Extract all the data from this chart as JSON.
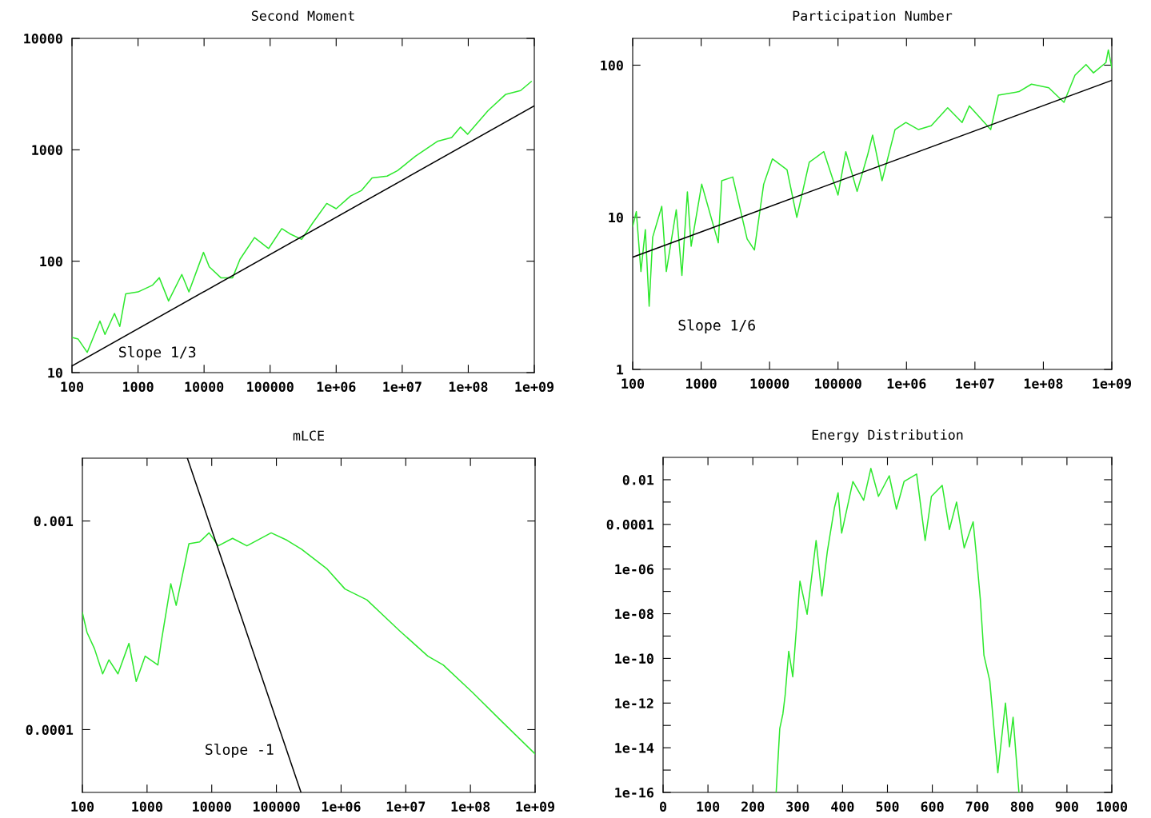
{
  "chart_data": [
    {
      "type": "line",
      "title": "Second Moment",
      "log": "xy",
      "grid": false,
      "xlim": [
        100,
        1000000000
      ],
      "ylim": [
        10,
        10000
      ],
      "xticks": [
        100,
        1000,
        10000,
        100000,
        {
          "value": 1000000,
          "label": "1e+06"
        },
        {
          "value": 10000000,
          "label": "1e+07"
        },
        {
          "value": 100000000,
          "label": "1e+08"
        },
        {
          "value": 1000000000,
          "label": "1e+09"
        }
      ],
      "yticks": [
        10,
        100,
        1000,
        10000
      ],
      "series": [
        {
          "color": "#2ee82e",
          "x": [
            100,
            124,
            170,
            265,
            316,
            440,
            530,
            650,
            1000,
            1660,
            2100,
            2900,
            4600,
            5900,
            9800,
            12000,
            18000,
            27000,
            35000,
            58000,
            95000,
            150000,
            200000,
            300000,
            440000,
            720000,
            1000000,
            1650000,
            2400000,
            3500000,
            5900000,
            8500000,
            16000000,
            34000000,
            56000000,
            76000000,
            98000000,
            200000000,
            370000000,
            620000000,
            900000000
          ],
          "values": [
            20.7,
            20,
            15.2,
            29,
            22,
            34,
            26,
            51,
            53,
            61,
            71,
            44,
            76,
            53,
            120,
            89,
            71,
            71,
            104,
            163,
            130,
            196,
            176,
            157,
            220,
            330,
            296,
            385,
            430,
            560,
            580,
            650,
            880,
            1190,
            1290,
            1600,
            1380,
            2250,
            3150,
            3400,
            4100
          ]
        },
        {
          "color": "#000000",
          "x": [
            100,
            1000000000
          ],
          "values": [
            11.5,
            2480
          ]
        }
      ],
      "annotations": [
        "Slope 1/3"
      ]
    },
    {
      "type": "line",
      "title": "Participation Number",
      "log": "xy",
      "grid": false,
      "xlim": [
        100,
        1000000000
      ],
      "ylim": [
        1,
        150
      ],
      "xticks": [
        100,
        1000,
        10000,
        100000,
        {
          "value": 1000000,
          "label": "1e+06"
        },
        {
          "value": 10000000,
          "label": "1e+07"
        },
        {
          "value": 100000000,
          "label": "1e+08"
        },
        {
          "value": 1000000000,
          "label": "1e+09"
        }
      ],
      "yticks": [
        1,
        10,
        100
      ],
      "series": [
        {
          "color": "#2ee82e",
          "x": [
            100,
            113,
            132,
            153,
            174,
            196,
            266,
            310,
            433,
            524,
            630,
            715,
            1020,
            1780,
            2000,
            2900,
            4700,
            6000,
            8200,
            11000,
            18000,
            25000,
            38000,
            62000,
            100000,
            130000,
            190000,
            270000,
            320000,
            440000,
            680000,
            980000,
            1500000,
            2300000,
            4000000,
            6500000,
            8300000,
            17000000,
            22000000,
            44000000,
            67000000,
            120000000,
            200000000,
            290000000,
            420000000,
            540000000,
            820000000,
            890000000,
            1000000000
          ],
          "values": [
            8.7,
            10.9,
            4.4,
            8.3,
            2.6,
            7.4,
            11.8,
            4.4,
            11.2,
            4.15,
            14.7,
            6.45,
            16.5,
            6.8,
            17.4,
            18.4,
            7.2,
            6.1,
            16.5,
            24.2,
            20.5,
            10,
            23,
            27,
            14,
            27,
            14.8,
            25.6,
            34.7,
            17.4,
            37.7,
            42,
            37.7,
            40,
            52.5,
            42,
            54,
            37.7,
            63.5,
            67,
            75,
            71,
            57,
            86,
            101,
            89,
            104,
            126,
            96
          ]
        },
        {
          "color": "#000000",
          "x": [
            100,
            1000000000
          ],
          "values": [
            5.47,
            79.5
          ]
        }
      ],
      "annotations": [
        "Slope 1/6"
      ]
    },
    {
      "type": "line",
      "title": "mLCE",
      "log": "xy",
      "grid": false,
      "xlim": [
        100,
        1000000000
      ],
      "ylim": [
        5e-05,
        0.002
      ],
      "xticks": [
        100,
        1000,
        10000,
        100000,
        {
          "value": 1000000,
          "label": "1e+06"
        },
        {
          "value": 10000000,
          "label": "1e+07"
        },
        {
          "value": 100000000,
          "label": "1e+08"
        },
        {
          "value": 1000000000,
          "label": "1e+09"
        }
      ],
      "yticks": [
        0.0001,
        0.001
      ],
      "series": [
        {
          "color": "#2ee82e",
          "x": [
            100,
            118,
            154,
            206,
            257,
            355,
            525,
            680,
            935,
            1470,
            1660,
            2330,
            2820,
            4440,
            6500,
            9100,
            12600,
            21000,
            35000,
            83000,
            145000,
            245000,
            610000,
            1150000,
            2500000,
            8000000,
            22000000,
            38000000,
            107000000,
            300000000,
            1000000000
          ],
          "values": [
            0.000364,
            0.000292,
            0.000244,
            0.000185,
            0.000216,
            0.000185,
            0.000259,
            0.00017,
            0.000225,
            0.000204,
            0.000264,
            0.0005,
            0.000394,
            0.000778,
            0.000793,
            0.000877,
            0.00076,
            0.000826,
            0.00076,
            0.000877,
            0.000809,
            0.000732,
            0.000588,
            0.000472,
            0.000419,
            0.000298,
            0.000225,
            0.000204,
            0.000151,
            0.00011,
            7.65e-05
          ]
        },
        {
          "color": "#000000",
          "x": [
            4200,
            240000
          ],
          "values": [
            0.002,
            5e-05
          ]
        }
      ],
      "annotations": [
        "Slope -1"
      ]
    },
    {
      "type": "line",
      "title": "Energy Distribution",
      "log": "y",
      "grid": false,
      "xlim": [
        0,
        1000
      ],
      "ylim": [
        1e-16,
        0.1
      ],
      "xticks": [
        0,
        100,
        200,
        300,
        400,
        500,
        600,
        700,
        800,
        900,
        1000
      ],
      "yticks": [
        1e-16,
        {
          "value": 1e-15,
          "label": null
        },
        1e-14,
        {
          "value": 1e-13,
          "label": null
        },
        1e-12,
        {
          "value": 1e-11,
          "label": null
        },
        1e-10,
        {
          "value": 1e-09,
          "label": null
        },
        1e-08,
        {
          "value": 1e-07,
          "label": null
        },
        1e-06,
        {
          "value": 1e-05,
          "label": null
        },
        0.0001,
        {
          "value": 0.001,
          "label": null
        },
        0.01
      ],
      "series": [
        {
          "color": "#2ee82e",
          "x": [
            252,
            260,
            267,
            272,
            280,
            289,
            297,
            305,
            321,
            329,
            341,
            354,
            366,
            382,
            390,
            398,
            423,
            447,
            463,
            480,
            504,
            520,
            537,
            565,
            584,
            598,
            622,
            638,
            654,
            671,
            691,
            699,
            707,
            715,
            728,
            746,
            763,
            772,
            780,
            793
          ],
          "values": [
            1e-16,
            7.2e-14,
            3.3e-13,
            2.2e-12,
            2.1e-10,
            1.5e-11,
            2.1e-09,
            2.9e-07,
            9.5e-09,
            2e-07,
            1.9e-05,
            6.3e-08,
            6e-06,
            0.00058,
            0.0026,
            4.1e-05,
            0.0083,
            0.0012,
            0.032,
            0.0018,
            0.015,
            0.00048,
            0.0083,
            0.018,
            1.9e-05,
            0.0018,
            0.0056,
            5.9e-05,
            0.001,
            8.9e-06,
            0.00013,
            2.8e-06,
            4.4e-08,
            1.4e-10,
            1e-11,
            7.6e-16,
            1e-12,
            1.1e-14,
            2.3e-13,
            1e-16
          ]
        }
      ]
    }
  ]
}
